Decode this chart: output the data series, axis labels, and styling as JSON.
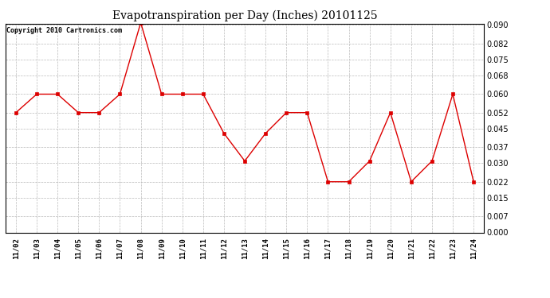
{
  "title": "Evapotranspiration per Day (Inches) 20101125",
  "copyright_text": "Copyright 2010 Cartronics.com",
  "x_labels": [
    "11/02",
    "11/03",
    "11/04",
    "11/05",
    "11/06",
    "11/07",
    "11/08",
    "11/09",
    "11/10",
    "11/11",
    "11/12",
    "11/13",
    "11/14",
    "11/15",
    "11/16",
    "11/17",
    "11/18",
    "11/19",
    "11/20",
    "11/21",
    "11/22",
    "11/23",
    "11/24"
  ],
  "y_values": [
    0.052,
    0.06,
    0.06,
    0.052,
    0.052,
    0.06,
    0.091,
    0.06,
    0.06,
    0.06,
    0.043,
    0.031,
    0.043,
    0.052,
    0.052,
    0.022,
    0.022,
    0.031,
    0.052,
    0.022,
    0.031,
    0.06,
    0.022
  ],
  "line_color": "#dd0000",
  "marker_color": "#dd0000",
  "bg_color": "#ffffff",
  "plot_bg_color": "#ffffff",
  "grid_color": "#bbbbbb",
  "y_min": 0.0,
  "y_max": 0.09,
  "y_ticks": [
    0.0,
    0.007,
    0.015,
    0.022,
    0.03,
    0.037,
    0.045,
    0.052,
    0.06,
    0.068,
    0.075,
    0.082,
    0.09
  ]
}
